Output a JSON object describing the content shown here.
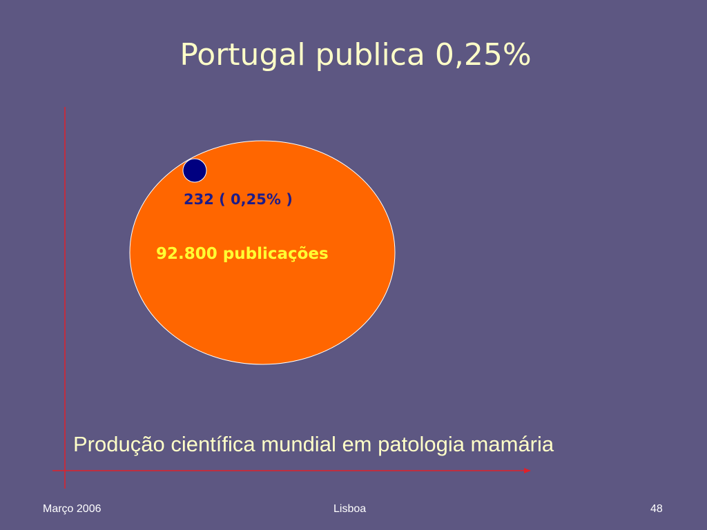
{
  "slide": {
    "title": "Portugal publica 0,25%",
    "portugal_label": "232 ( 0,25% )",
    "world_label": "92.800 publicações",
    "axis_caption": "Produção científica mundial em patologia mamária"
  },
  "footer": {
    "date": "Março 2006",
    "location": "Lisboa",
    "page_number": "48"
  },
  "colors": {
    "background": "#5d5782",
    "world_circle": "#ff6600",
    "portugal_circle": "#000080",
    "axis": "#e0202a",
    "title_text": "#ffffc8",
    "world_label_text": "#ffff33"
  }
}
